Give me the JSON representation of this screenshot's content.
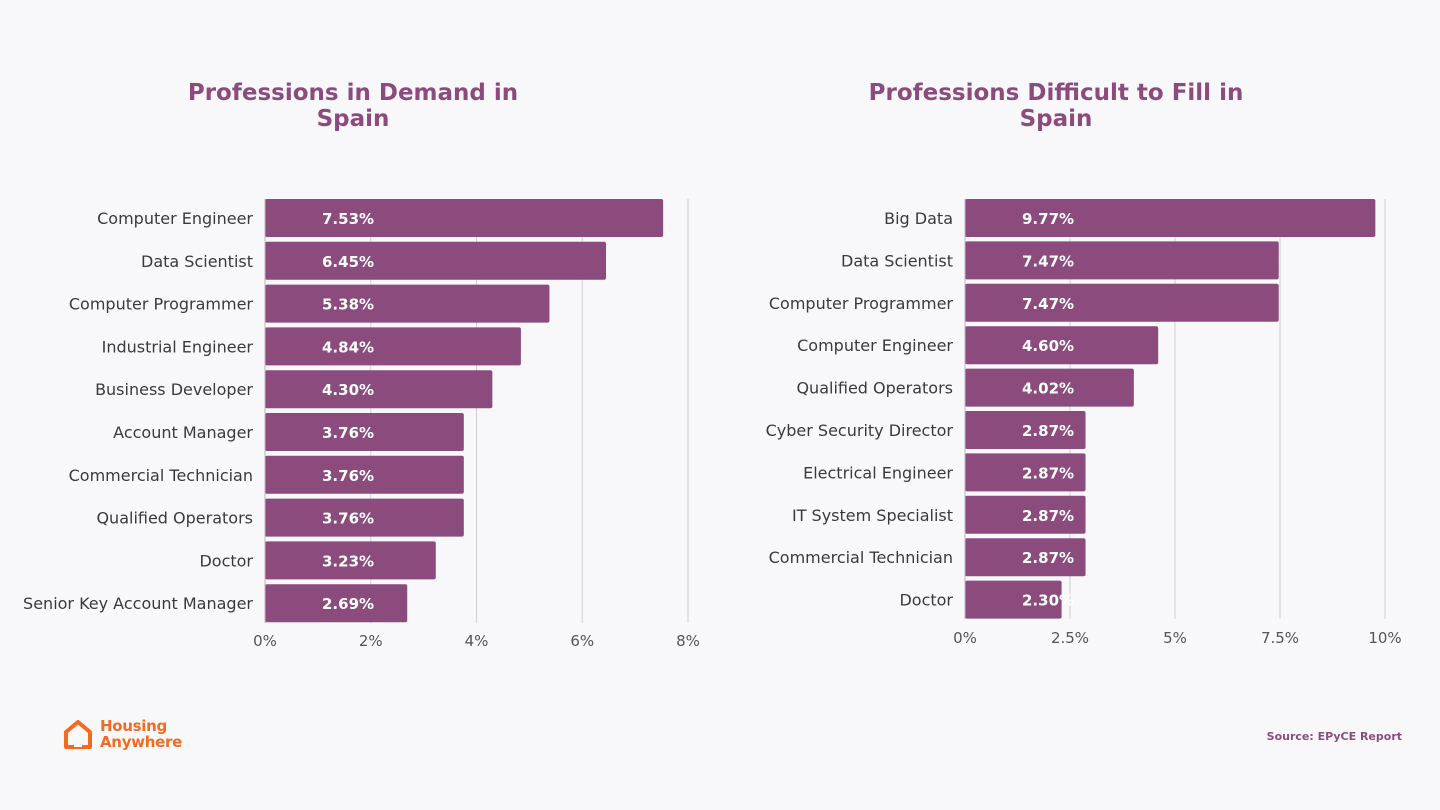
{
  "chart_data": [
    {
      "type": "bar",
      "orientation": "horizontal",
      "title": "Professions in Demand in Spain",
      "categories": [
        "Computer Engineer",
        "Data Scientist",
        "Computer Programmer",
        "Industrial Engineer",
        "Business Developer",
        "Account Manager",
        "Commercial Technician",
        "Qualified Operators",
        "Doctor",
        "Senior Key Account Manager"
      ],
      "values": [
        7.53,
        6.45,
        5.38,
        4.84,
        4.3,
        3.76,
        3.76,
        3.76,
        3.23,
        2.69
      ],
      "data_labels": [
        "7.53%",
        "6.45%",
        "5.38%",
        "4.84%",
        "4.30%",
        "3.76%",
        "3.76%",
        "3.76%",
        "3.23%",
        "2.69%"
      ],
      "xlim": [
        0,
        8
      ],
      "x_ticks": [
        0,
        2,
        4,
        6,
        8
      ],
      "x_tick_labels": [
        "0%",
        "2%",
        "4%",
        "6%",
        "8%"
      ],
      "xlabel": "",
      "ylabel": "",
      "grid": true,
      "bar_color": "#8b4c7d"
    },
    {
      "type": "bar",
      "orientation": "horizontal",
      "title": "Professions Difficult to Fill in Spain",
      "categories": [
        "Big Data",
        "Data Scientist",
        "Computer Programmer",
        "Computer Engineer",
        "Qualified Operators",
        "Cyber Security Director",
        "Electrical Engineer",
        "IT System Specialist",
        "Commercial Technician",
        "Doctor"
      ],
      "values": [
        9.77,
        7.47,
        7.47,
        4.6,
        4.02,
        2.87,
        2.87,
        2.87,
        2.87,
        2.3
      ],
      "data_labels": [
        "9.77%",
        "7.47%",
        "7.47%",
        "4.60%",
        "4.02%",
        "2.87%",
        "2.87%",
        "2.87%",
        "2.87%",
        "2.30%"
      ],
      "xlim": [
        0,
        10
      ],
      "x_ticks": [
        0,
        2.5,
        5,
        7.5,
        10
      ],
      "x_tick_labels": [
        "0%",
        "2.5%",
        "5%",
        "7.5%",
        "10%"
      ],
      "xlabel": "",
      "ylabel": "",
      "grid": true,
      "bar_color": "#8b4c7d"
    }
  ],
  "branding": {
    "logo_line1": "Housing",
    "logo_line2": "Anywhere",
    "logo_icon": "house-icon",
    "logo_color": "#f26b21"
  },
  "source": "Source: EPyCE Report"
}
